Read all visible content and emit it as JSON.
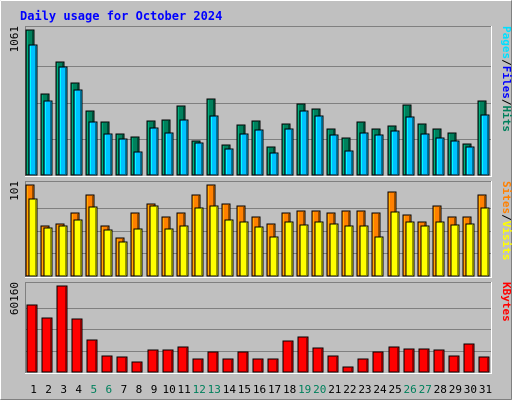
{
  "chart_data": {
    "type": "bar",
    "title": "Daily usage for October 2024",
    "categories": [
      "1",
      "2",
      "3",
      "4",
      "5",
      "6",
      "7",
      "8",
      "9",
      "10",
      "11",
      "12",
      "13",
      "14",
      "15",
      "16",
      "17",
      "18",
      "19",
      "20",
      "21",
      "22",
      "23",
      "24",
      "25",
      "26",
      "27",
      "28",
      "29",
      "30",
      "31"
    ],
    "weekend_days": [
      "5",
      "6",
      "12",
      "13",
      "19",
      "20",
      "26",
      "27"
    ],
    "colors": {
      "hits": "#00805c",
      "files": "#00c0ff",
      "pages": "#00e0ff",
      "visits": "#ffff00",
      "sites": "#ff8000",
      "kbytes": "#ff0000",
      "title": "#0000ff",
      "weekend_label": "#00805c",
      "weekday_label": "#000000",
      "panel_bg": "#c0c0c0"
    },
    "panels": [
      {
        "id": "hits-files-pages",
        "ymax_label": "1061",
        "ymax": 1061,
        "legend": [
          {
            "text": "Pages",
            "color": "#00e0ff"
          },
          {
            "text": "/",
            "color": "#000000"
          },
          {
            "text": "Files",
            "color": "#0000ff"
          },
          {
            "text": "/",
            "color": "#000000"
          },
          {
            "text": "Hits",
            "color": "#00805c"
          }
        ],
        "series": [
          {
            "name": "Hits",
            "values": [
              1061,
              590,
              825,
              670,
              470,
              390,
              300,
              280,
              395,
              400,
              505,
              250,
              555,
              220,
              365,
              395,
              205,
              370,
              520,
              480,
              340,
              270,
              390,
              340,
              360,
              510,
              370,
              335,
              305,
              225,
              540
            ]
          },
          {
            "name": "Files",
            "values": [
              950,
              545,
              790,
              620,
              385,
              300,
              260,
              170,
              345,
              310,
              400,
              235,
              430,
              190,
              300,
              330,
              160,
              340,
              470,
              430,
              290,
              175,
              310,
              295,
              320,
              425,
              300,
              270,
              250,
              205,
              440
            ]
          }
        ]
      },
      {
        "id": "sites-visits",
        "ymax_label": "101",
        "ymax": 101,
        "legend": [
          {
            "text": "Sites",
            "color": "#ff8000"
          },
          {
            "text": "/",
            "color": "#000000"
          },
          {
            "text": "Visits",
            "color": "#ffff00"
          }
        ],
        "series": [
          {
            "name": "Sites",
            "values": [
              101,
              55,
              58,
              70,
              90,
              56,
              42,
              70,
              80,
              66,
              70,
              90,
              101,
              80,
              78,
              66,
              58,
              70,
              72,
              72,
              70,
              72,
              72,
              70,
              93,
              68,
              60,
              78,
              66,
              66,
              90
            ]
          },
          {
            "name": "Visits",
            "values": [
              86,
              53,
              56,
              62,
              77,
              51,
              38,
              52,
              78,
              52,
              56,
              75,
              78,
              62,
              60,
              54,
              43,
              60,
              57,
              60,
              58,
              56,
              55,
              43,
              71,
              60,
              55,
              60,
              57,
              58,
              75
            ]
          }
        ]
      },
      {
        "id": "kbytes",
        "ymax_label": "60160",
        "ymax": 60160,
        "legend": [
          {
            "text": "KBytes",
            "color": "#ff0000"
          }
        ],
        "series": [
          {
            "name": "KBytes",
            "values": [
              47200,
              37700,
              60160,
              36800,
              22300,
              11000,
              10600,
              7200,
              15700,
              15700,
              17600,
              9300,
              14000,
              8800,
              13900,
              9300,
              9300,
              21500,
              24300,
              16800,
              11000,
              3600,
              9300,
              14000,
              17200,
              16300,
              16300,
              15700,
              11000,
              19700,
              10600
            ]
          }
        ]
      }
    ]
  }
}
